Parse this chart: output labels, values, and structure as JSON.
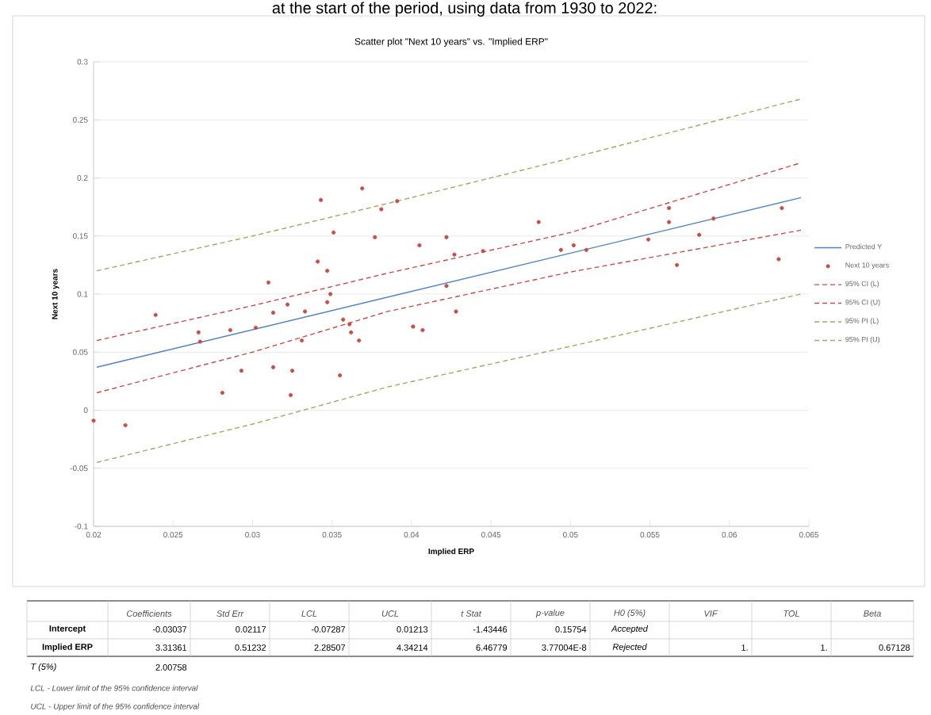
{
  "chart_data": {
    "type": "scatter",
    "title": "Scatter plot \"Next 10 years\" vs. \"Implied ERP\"",
    "xlabel": "Implied ERP",
    "ylabel": "Next 10 years",
    "xlim": [
      0.02,
      0.065
    ],
    "ylim": [
      -0.1,
      0.3
    ],
    "xticks": [
      0.02,
      0.025,
      0.03,
      0.035,
      0.04,
      0.045,
      0.05,
      0.055,
      0.06,
      0.065
    ],
    "yticks": [
      -0.1,
      -0.05,
      0,
      0.05,
      0.1,
      0.15,
      0.2,
      0.25,
      0.3
    ],
    "grid": "y",
    "legend": "right",
    "series": [
      {
        "name": "Predicted Y",
        "type": "line",
        "line_style": "solid",
        "color": "#4f81bd",
        "x": [
          0.0202,
          0.0645
        ],
        "values": [
          0.037,
          0.183
        ]
      },
      {
        "name": "Next 10 years",
        "marker": "circle",
        "color": "#c0504d",
        "x": [
          0.0239,
          0.0266,
          0.0267,
          0.0286,
          0.0302,
          0.031,
          0.0313,
          0.0322,
          0.0333,
          0.0343,
          0.0341,
          0.0347,
          0.0351,
          0.0349,
          0.0347,
          0.0369,
          0.0381,
          0.0377,
          0.0391,
          0.0357,
          0.0361,
          0.0362,
          0.0367,
          0.0331,
          0.0405,
          0.0401,
          0.0407,
          0.0422,
          0.0427,
          0.0428,
          0.0422,
          0.02,
          0.022,
          0.0281,
          0.0293,
          0.0313,
          0.0325,
          0.0324,
          0.0355,
          0.0445,
          0.048,
          0.0494,
          0.0502,
          0.051,
          0.0549,
          0.0562,
          0.0562,
          0.0567,
          0.0581,
          0.059,
          0.0633,
          0.0631
        ],
        "values": [
          0.082,
          0.067,
          0.059,
          0.069,
          0.071,
          0.11,
          0.084,
          0.091,
          0.085,
          0.181,
          0.128,
          0.12,
          0.153,
          0.1,
          0.093,
          0.191,
          0.173,
          0.149,
          0.18,
          0.078,
          0.074,
          0.067,
          0.06,
          0.06,
          0.142,
          0.072,
          0.069,
          0.149,
          0.134,
          0.085,
          0.107,
          -0.009,
          -0.013,
          0.015,
          0.034,
          0.037,
          0.034,
          0.013,
          0.03,
          0.137,
          0.162,
          0.138,
          0.142,
          0.138,
          0.147,
          0.174,
          0.162,
          0.125,
          0.151,
          0.165,
          0.174,
          0.13
        ]
      },
      {
        "name": "95% CI (L)",
        "type": "line",
        "line_style": "dashed",
        "color": "#c0504d",
        "x": [
          0.0202,
          0.03,
          0.0385,
          0.05,
          0.0645
        ],
        "values": [
          0.015,
          0.05,
          0.085,
          0.119,
          0.155
        ]
      },
      {
        "name": "95% CI (U)",
        "type": "line",
        "line_style": "dashed",
        "color": "#c0504d",
        "x": [
          0.0202,
          0.03,
          0.0385,
          0.05,
          0.0645
        ],
        "values": [
          0.06,
          0.09,
          0.118,
          0.153,
          0.213
        ]
      },
      {
        "name": "95% PI (L)",
        "type": "line",
        "line_style": "dashed",
        "color": "#a9a46a",
        "x": [
          0.0202,
          0.03,
          0.0385,
          0.05,
          0.0645
        ],
        "values": [
          -0.045,
          -0.012,
          0.02,
          0.055,
          0.1
        ]
      },
      {
        "name": "95% PI (U)",
        "type": "line",
        "line_style": "dashed",
        "color": "#a9a46a",
        "x": [
          0.0202,
          0.03,
          0.0385,
          0.05,
          0.0645
        ],
        "values": [
          0.12,
          0.15,
          0.178,
          0.217,
          0.268
        ]
      }
    ],
    "annotations": [
      "at the start of the period, using data from 1930 to 2022:",
      "Coefficients",
      "Std Err",
      "LCL",
      "UCL",
      "t Stat",
      "p-value",
      "H0 (5%)",
      "VIF",
      "TOL",
      "Beta",
      "Intercept",
      "-0.03037",
      "0.02117",
      "-0.07287",
      "0.01213",
      "-1.43446",
      "0.15754",
      "Accepted",
      "Implied ERP",
      "3.31361",
      "0.51232",
      "2.28507",
      "4.34214",
      "6.46779",
      "3.77004E-8",
      "Rejected",
      "1.",
      "1.",
      "0.67128",
      "T (5%)",
      "2.00758",
      "LCL - Lower limit of the 95% confidence interval",
      "UCL - Upper limit of the 95% confidence interval"
    ]
  }
}
